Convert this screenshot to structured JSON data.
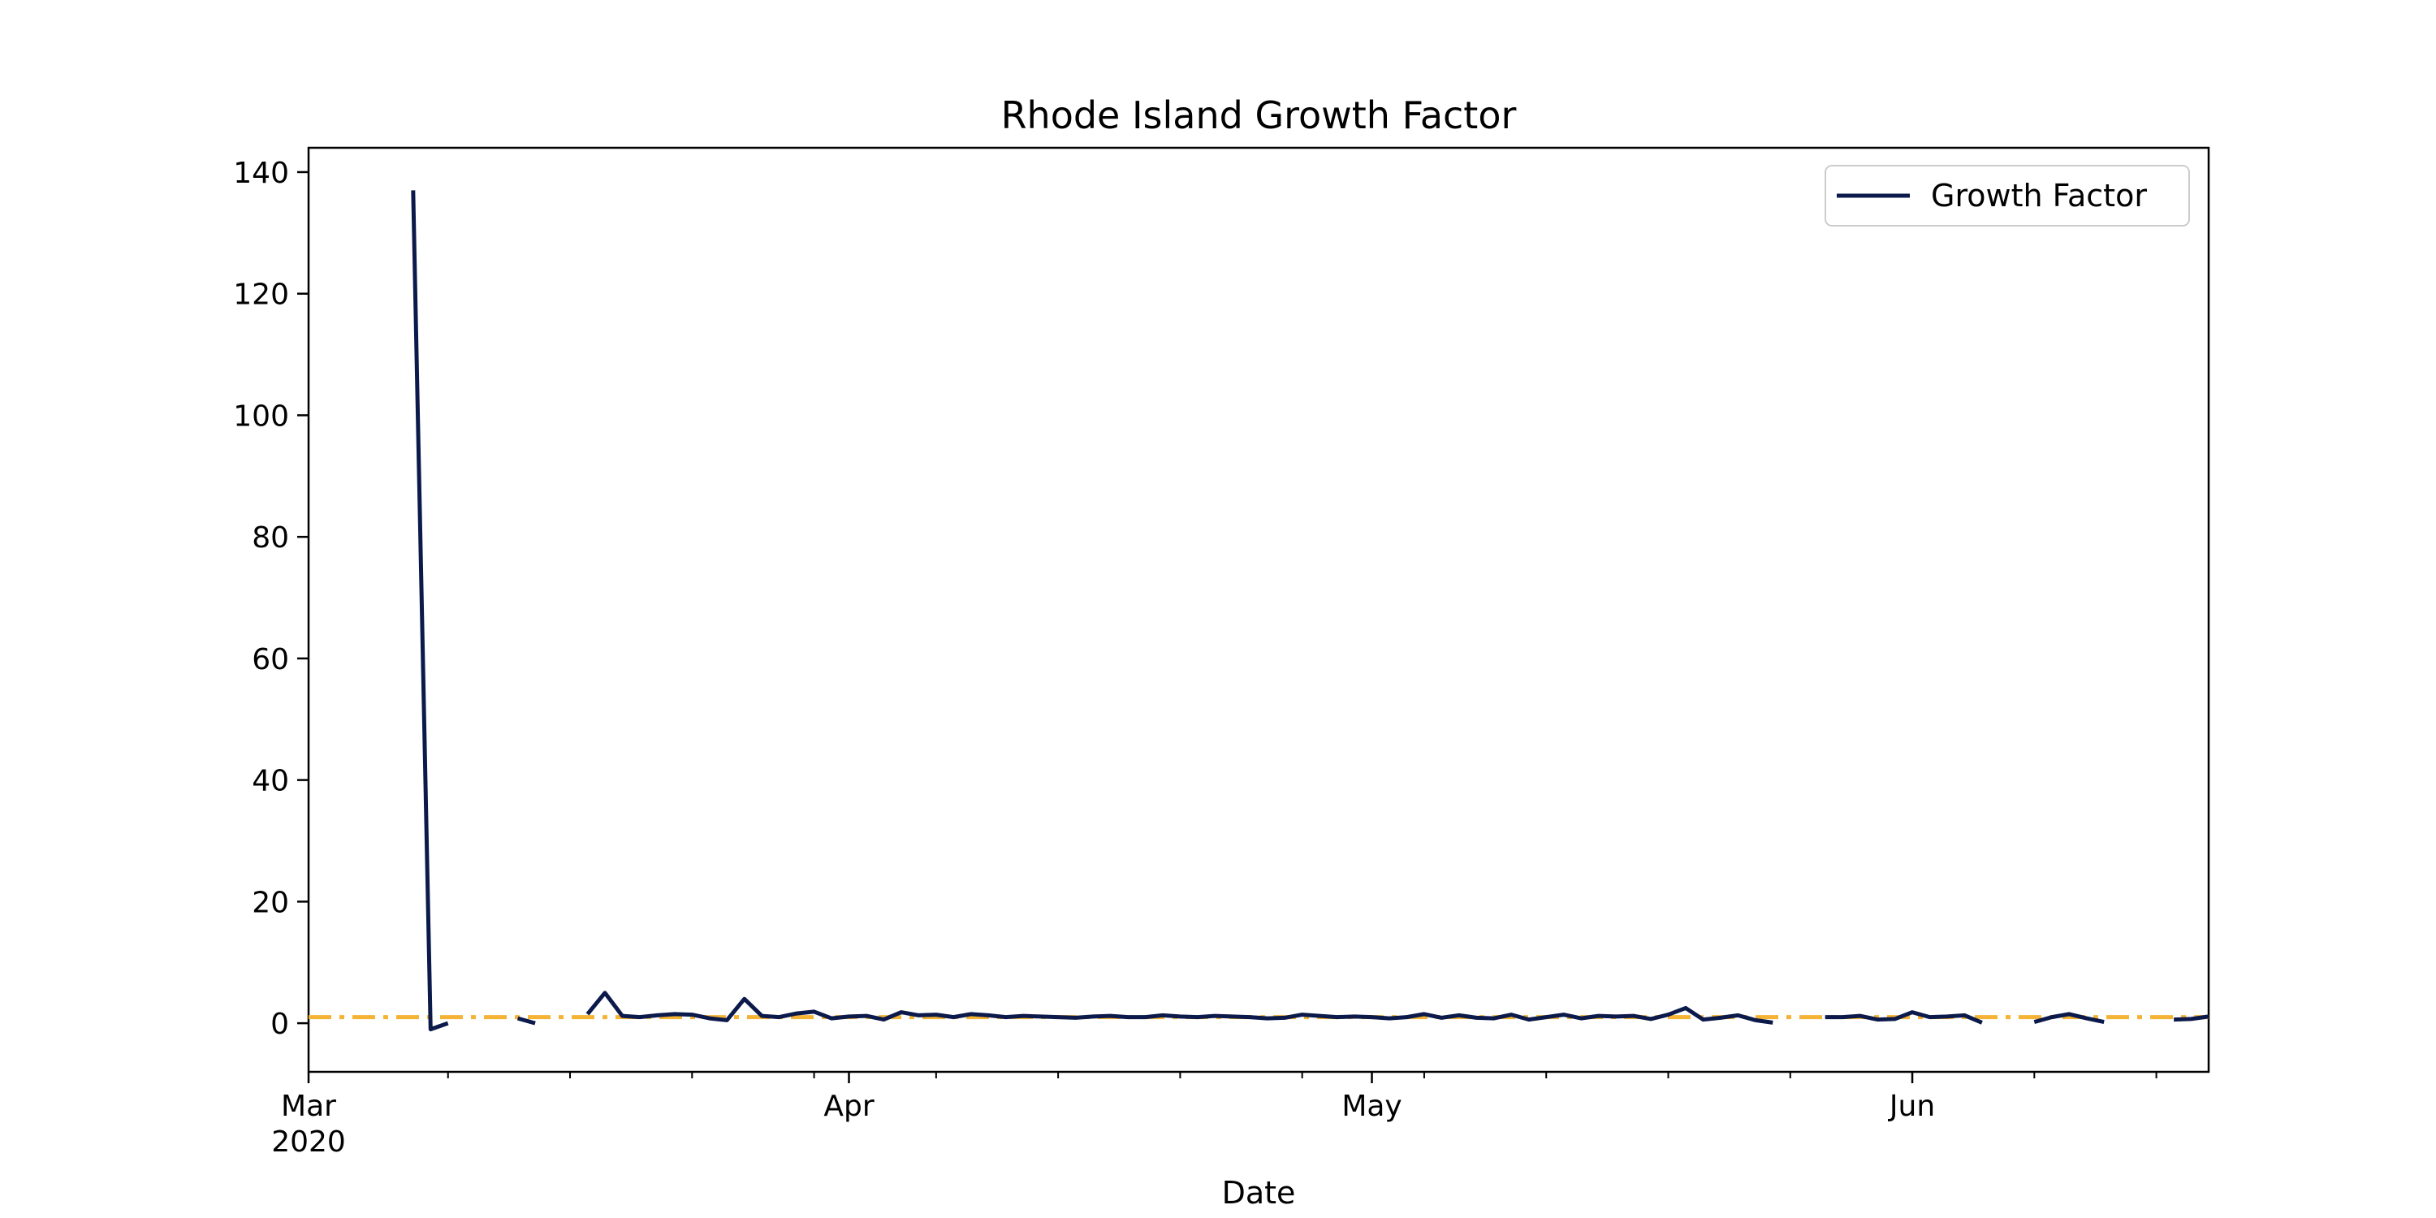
{
  "chart_data": {
    "type": "line",
    "title": "Rhode Island Growth Factor",
    "xlabel": "Date",
    "ylabel": "",
    "ylim": [
      -8,
      144
    ],
    "xlim": [
      "2020-03-01",
      "2020-06-18"
    ],
    "y_ticks": [
      {
        "value": 0,
        "label": "0"
      },
      {
        "value": 20,
        "label": "20"
      },
      {
        "value": 40,
        "label": "40"
      },
      {
        "value": 60,
        "label": "60"
      },
      {
        "value": 80,
        "label": "80"
      },
      {
        "value": 100,
        "label": "100"
      },
      {
        "value": 120,
        "label": "120"
      },
      {
        "value": 140,
        "label": "140"
      }
    ],
    "x_major_ticks": [
      {
        "date": "2020-03-01",
        "label": "Mar",
        "sublabel": "2020"
      },
      {
        "date": "2020-04-01",
        "label": "Apr",
        "sublabel": ""
      },
      {
        "date": "2020-05-01",
        "label": "May",
        "sublabel": ""
      },
      {
        "date": "2020-06-01",
        "label": "Jun",
        "sublabel": ""
      }
    ],
    "x_minor_ticks": [
      "2020-03-09",
      "2020-03-16",
      "2020-03-23",
      "2020-03-30",
      "2020-04-06",
      "2020-04-13",
      "2020-04-20",
      "2020-04-27",
      "2020-05-04",
      "2020-05-11",
      "2020-05-18",
      "2020-05-25",
      "2020-06-08",
      "2020-06-15"
    ],
    "reference_line": {
      "value": 1.0,
      "color": "#f5b335",
      "style": "dash-dot"
    },
    "legend": {
      "position": "top-right"
    },
    "series": [
      {
        "name": "Growth Factor",
        "color": "#0b1a4a",
        "points": [
          [
            "2020-03-07",
            137
          ],
          [
            "2020-03-08",
            -1
          ],
          [
            "2020-03-09",
            0
          ],
          null,
          [
            "2020-03-13",
            0.8
          ],
          [
            "2020-03-14",
            0
          ],
          null,
          [
            "2020-03-17",
            1.5
          ],
          [
            "2020-03-18",
            5
          ],
          [
            "2020-03-19",
            1.2
          ],
          [
            "2020-03-20",
            1.0
          ],
          [
            "2020-03-21",
            1.3
          ],
          [
            "2020-03-22",
            1.5
          ],
          [
            "2020-03-23",
            1.4
          ],
          [
            "2020-03-24",
            0.8
          ],
          [
            "2020-03-25",
            0.5
          ],
          [
            "2020-03-26",
            4
          ],
          [
            "2020-03-27",
            1.2
          ],
          [
            "2020-03-28",
            1.0
          ],
          [
            "2020-03-29",
            1.6
          ],
          [
            "2020-03-30",
            1.9
          ],
          [
            "2020-03-31",
            0.8
          ],
          [
            "2020-04-01",
            1.1
          ],
          [
            "2020-04-02",
            1.2
          ],
          [
            "2020-04-03",
            0.6
          ],
          [
            "2020-04-04",
            1.8
          ],
          [
            "2020-04-05",
            1.3
          ],
          [
            "2020-04-06",
            1.4
          ],
          [
            "2020-04-07",
            1.0
          ],
          [
            "2020-04-08",
            1.5
          ],
          [
            "2020-04-09",
            1.3
          ],
          [
            "2020-04-10",
            1.0
          ],
          [
            "2020-04-11",
            1.2
          ],
          [
            "2020-04-12",
            1.1
          ],
          [
            "2020-04-13",
            1.0
          ],
          [
            "2020-04-14",
            0.9
          ],
          [
            "2020-04-15",
            1.1
          ],
          [
            "2020-04-16",
            1.2
          ],
          [
            "2020-04-17",
            1.0
          ],
          [
            "2020-04-18",
            1.0
          ],
          [
            "2020-04-19",
            1.3
          ],
          [
            "2020-04-20",
            1.1
          ],
          [
            "2020-04-21",
            1.0
          ],
          [
            "2020-04-22",
            1.2
          ],
          [
            "2020-04-23",
            1.1
          ],
          [
            "2020-04-24",
            1.0
          ],
          [
            "2020-04-25",
            0.8
          ],
          [
            "2020-04-26",
            0.9
          ],
          [
            "2020-04-27",
            1.4
          ],
          [
            "2020-04-28",
            1.2
          ],
          [
            "2020-04-29",
            1.0
          ],
          [
            "2020-04-30",
            1.1
          ],
          [
            "2020-05-01",
            1.0
          ],
          [
            "2020-05-02",
            0.8
          ],
          [
            "2020-05-03",
            1.0
          ],
          [
            "2020-05-04",
            1.5
          ],
          [
            "2020-05-05",
            0.9
          ],
          [
            "2020-05-06",
            1.3
          ],
          [
            "2020-05-07",
            0.9
          ],
          [
            "2020-05-08",
            0.8
          ],
          [
            "2020-05-09",
            1.4
          ],
          [
            "2020-05-10",
            0.6
          ],
          [
            "2020-05-11",
            1.0
          ],
          [
            "2020-05-12",
            1.4
          ],
          [
            "2020-05-13",
            0.8
          ],
          [
            "2020-05-14",
            1.2
          ],
          [
            "2020-05-15",
            1.1
          ],
          [
            "2020-05-16",
            1.2
          ],
          [
            "2020-05-17",
            0.7
          ],
          [
            "2020-05-18",
            1.4
          ],
          [
            "2020-05-19",
            2.5
          ],
          [
            "2020-05-20",
            0.6
          ],
          [
            "2020-05-21",
            0.9
          ],
          [
            "2020-05-22",
            1.3
          ],
          [
            "2020-05-23",
            0.5
          ],
          [
            "2020-05-24",
            0.1
          ],
          null,
          [
            "2020-05-27",
            1.0
          ],
          [
            "2020-05-28",
            1.0
          ],
          [
            "2020-05-29",
            1.2
          ],
          [
            "2020-05-30",
            0.6
          ],
          [
            "2020-05-31",
            0.7
          ],
          [
            "2020-06-01",
            1.8
          ],
          [
            "2020-06-02",
            1.0
          ],
          [
            "2020-06-03",
            1.1
          ],
          [
            "2020-06-04",
            1.3
          ],
          [
            "2020-06-05",
            0.1
          ],
          null,
          [
            "2020-06-08",
            0.2
          ],
          [
            "2020-06-09",
            1.0
          ],
          [
            "2020-06-10",
            1.5
          ],
          [
            "2020-06-11",
            0.8
          ],
          [
            "2020-06-12",
            0.2
          ],
          null,
          [
            "2020-06-16",
            0.6
          ],
          [
            "2020-06-17",
            0.7
          ],
          [
            "2020-06-18",
            1.1
          ]
        ]
      }
    ]
  }
}
